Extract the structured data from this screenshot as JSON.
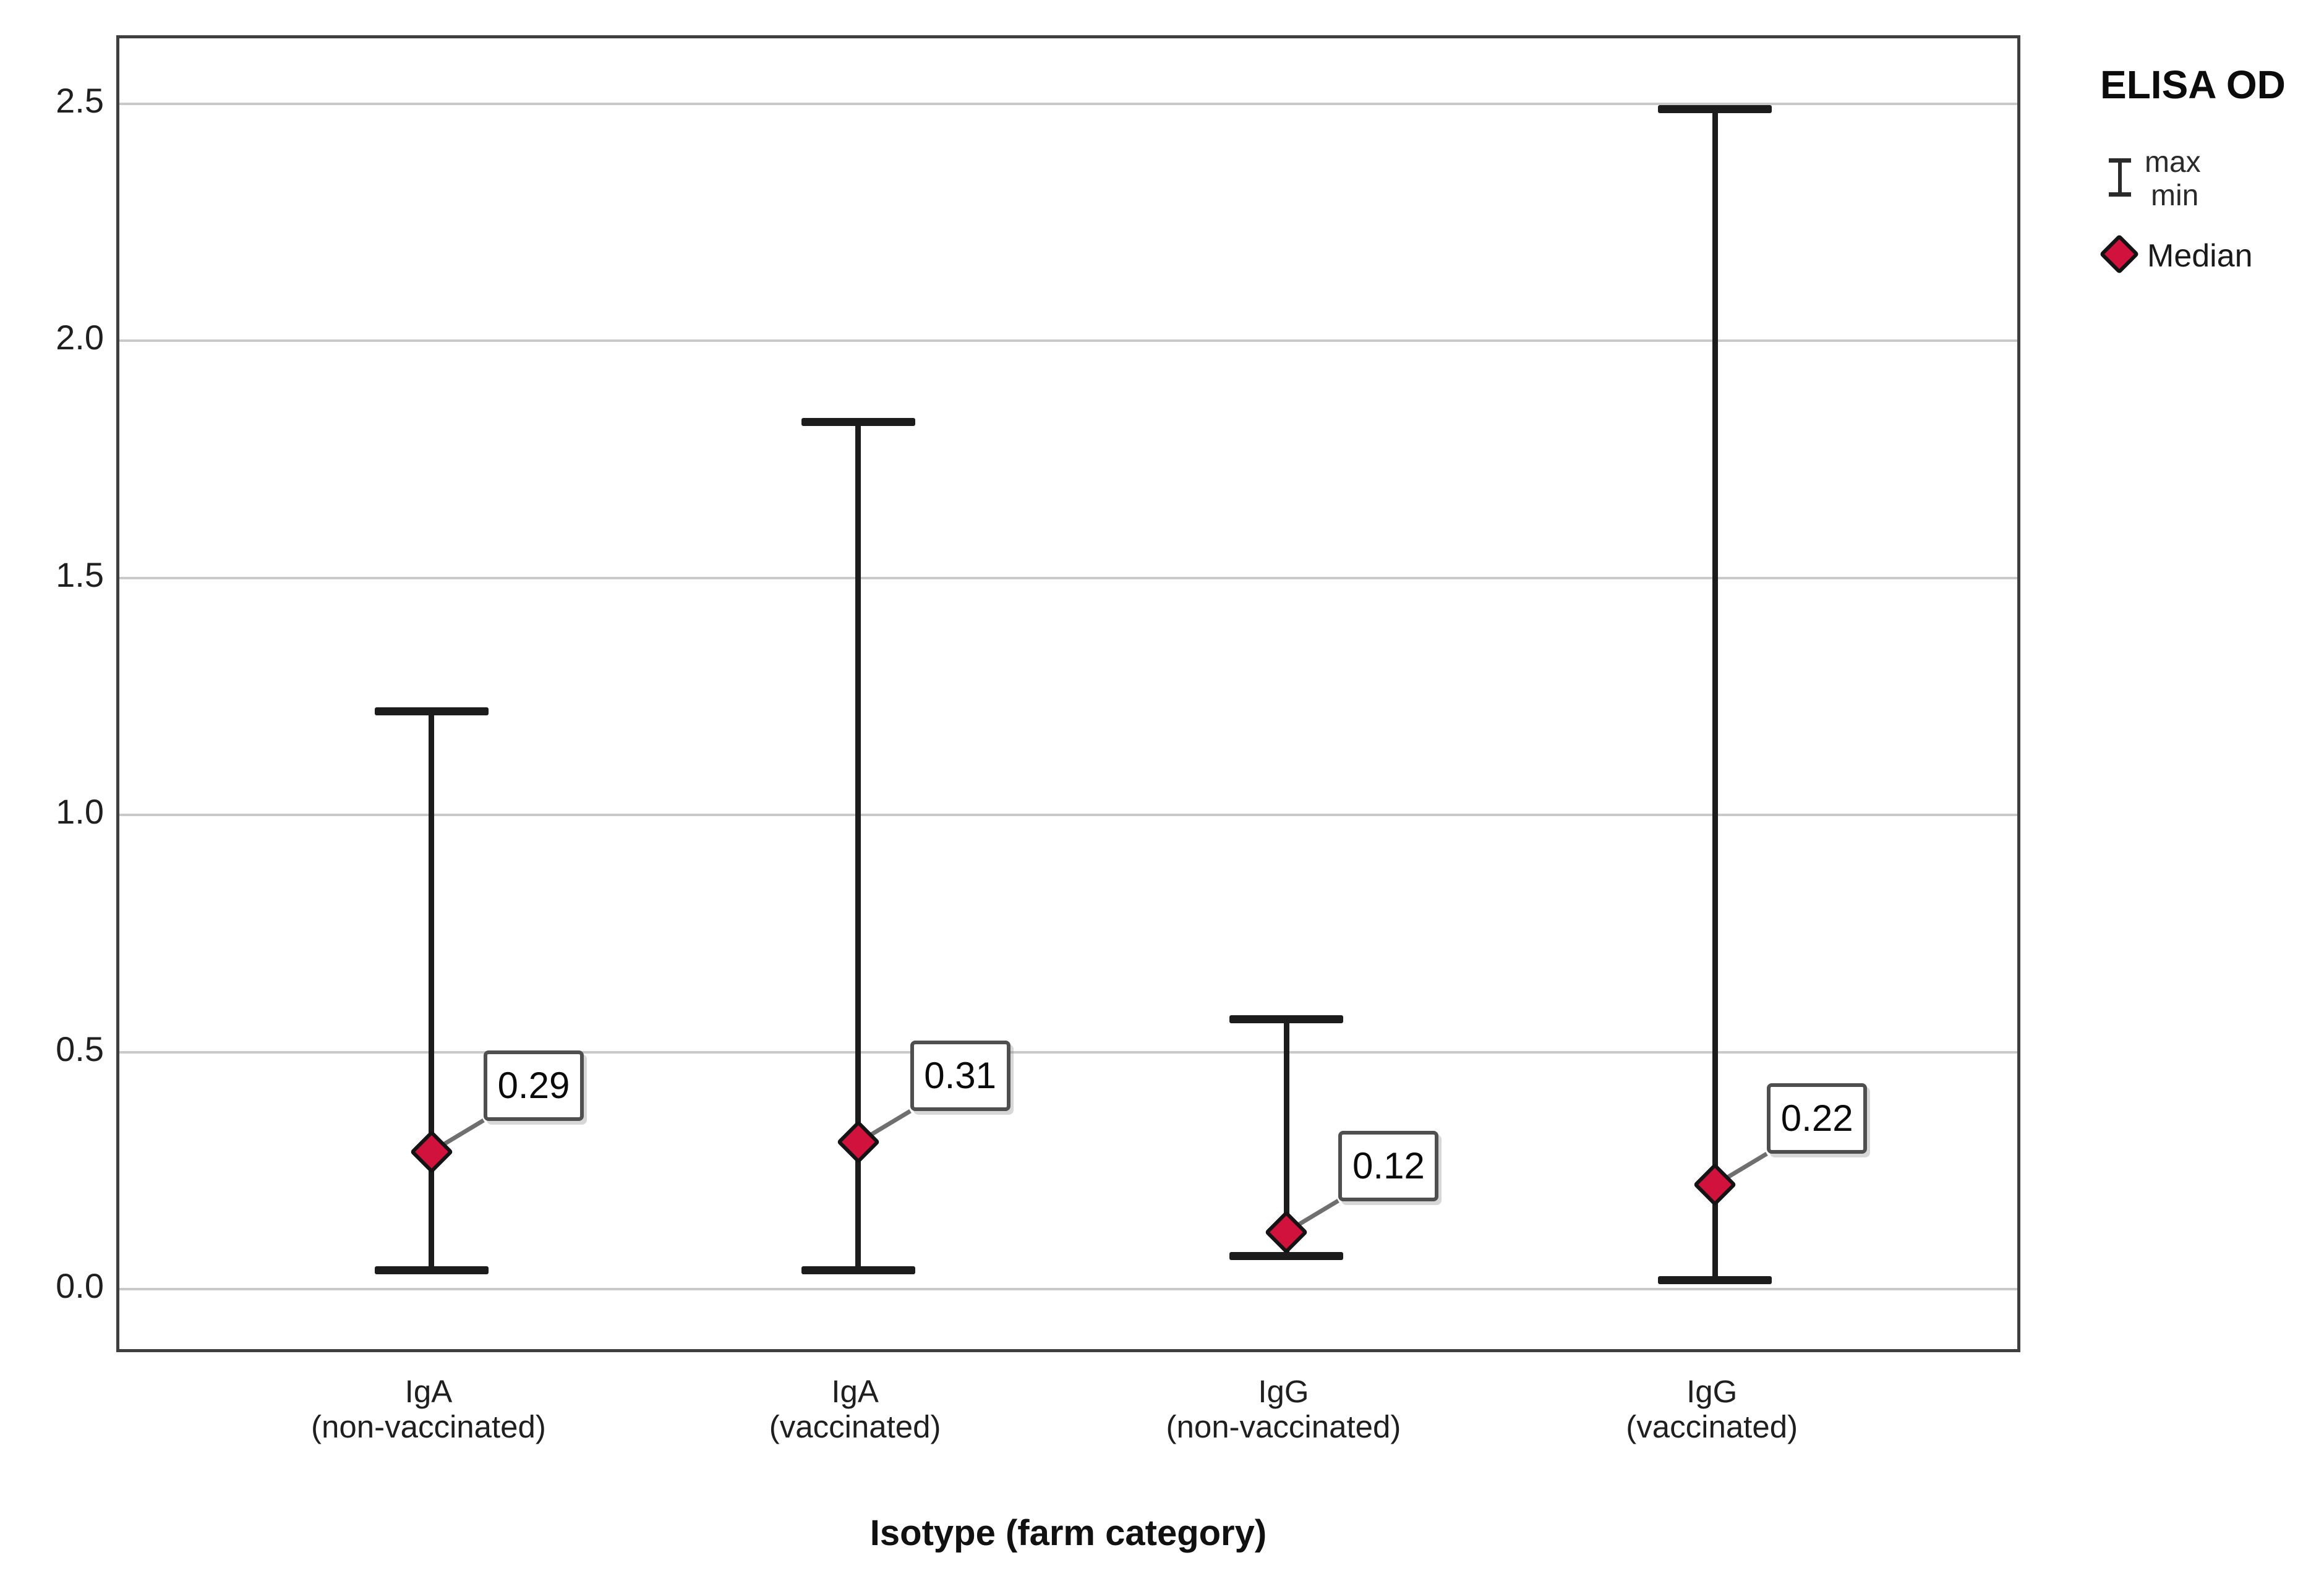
{
  "chart_data": {
    "type": "range-median",
    "title": "",
    "xlabel": "Isotype (farm category)",
    "ylabel": "",
    "ylim": [
      -0.14,
      2.64
    ],
    "grid": true,
    "legend_position": "top-right-outside",
    "yticks": [
      0.0,
      0.5,
      1.0,
      1.5,
      2.0,
      2.5
    ],
    "ytick_labels": [
      "0.0",
      "0.5",
      "1.0",
      "1.5",
      "2.0",
      "2.5"
    ],
    "categories": [
      {
        "label_line1": "IgA",
        "label_line2": "(non-vaccinated)",
        "max": 1.22,
        "min": 0.04,
        "median": 0.29,
        "median_label": "0.29"
      },
      {
        "label_line1": "IgA",
        "label_line2": "(vaccinated)",
        "max": 1.83,
        "min": 0.04,
        "median": 0.31,
        "median_label": "0.31"
      },
      {
        "label_line1": "IgG",
        "label_line2": "(non-vaccinated)",
        "max": 0.57,
        "min": 0.07,
        "median": 0.12,
        "median_label": "0.12"
      },
      {
        "label_line1": "IgG",
        "label_line2": "(vaccinated)",
        "max": 2.49,
        "min": 0.02,
        "median": 0.22,
        "median_label": "0.22"
      }
    ]
  },
  "legend": {
    "title": "ELISA OD",
    "range_item": {
      "icon": "range-icon",
      "max_label": "max",
      "min_label": "min"
    },
    "median_item": {
      "icon": "median-diamond-icon",
      "label": "Median"
    }
  },
  "colors": {
    "median_fill": "#d0123c",
    "whisker": "#1c1c1c",
    "gridline": "#c9c9c9",
    "plot_border": "#3f3f3f",
    "connector": "#6f6f6f",
    "label_box_border": "#4f4f4f",
    "text": "#1f1f1f",
    "background": "#ffffff"
  }
}
